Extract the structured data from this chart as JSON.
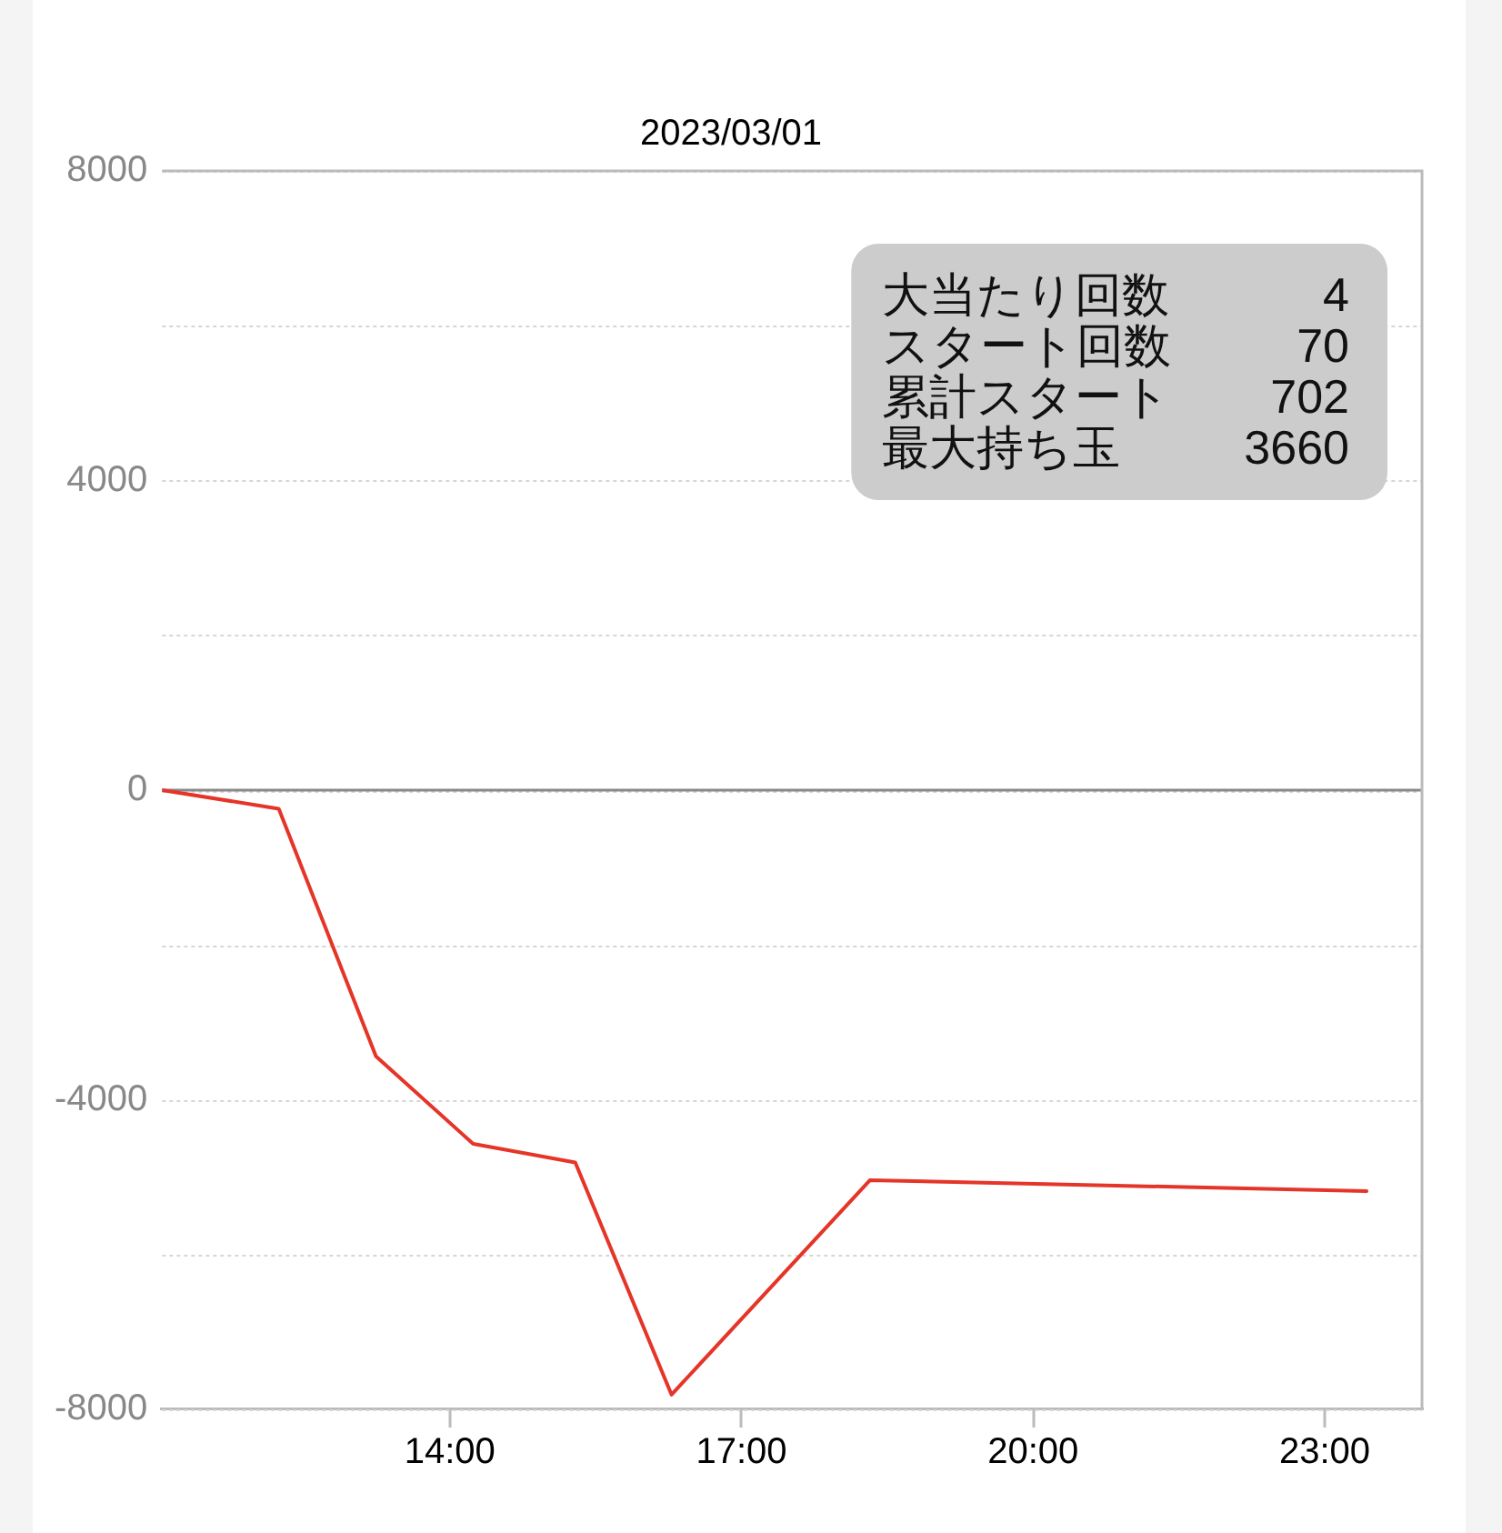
{
  "chart_data": {
    "type": "line",
    "title": "2023/03/01",
    "x": [
      11.04,
      12.24,
      13.24,
      14.24,
      15.29,
      16.28,
      18.32,
      23.43
    ],
    "values": [
      0,
      -240,
      -3440,
      -4570,
      -4810,
      -7810,
      -5040,
      -5180
    ],
    "color": "#e53528",
    "xlim": [
      11.04,
      24
    ],
    "xticks": [
      {
        "value": 14,
        "label": "14:00"
      },
      {
        "value": 17,
        "label": "17:00"
      },
      {
        "value": 20,
        "label": "20:00"
      },
      {
        "value": 23,
        "label": "23:00"
      }
    ],
    "ylim": [
      -8000,
      8000
    ],
    "yticks": [
      8000,
      {
        "value": 6000,
        "label": null
      },
      4000,
      {
        "value": 2000,
        "label": null
      },
      0,
      {
        "value": -2000,
        "label": null
      },
      -4000,
      {
        "value": -6000,
        "label": null
      },
      -8000
    ],
    "grid": "y",
    "legend": false,
    "ref_lines": [
      {
        "axis": "y",
        "value": 0,
        "color": "#888888"
      }
    ],
    "annotations": [
      "大当たり回数",
      "4",
      "スタート回数",
      "70",
      "累計スタート",
      "702",
      "最大持ち玉",
      "3660"
    ]
  }
}
